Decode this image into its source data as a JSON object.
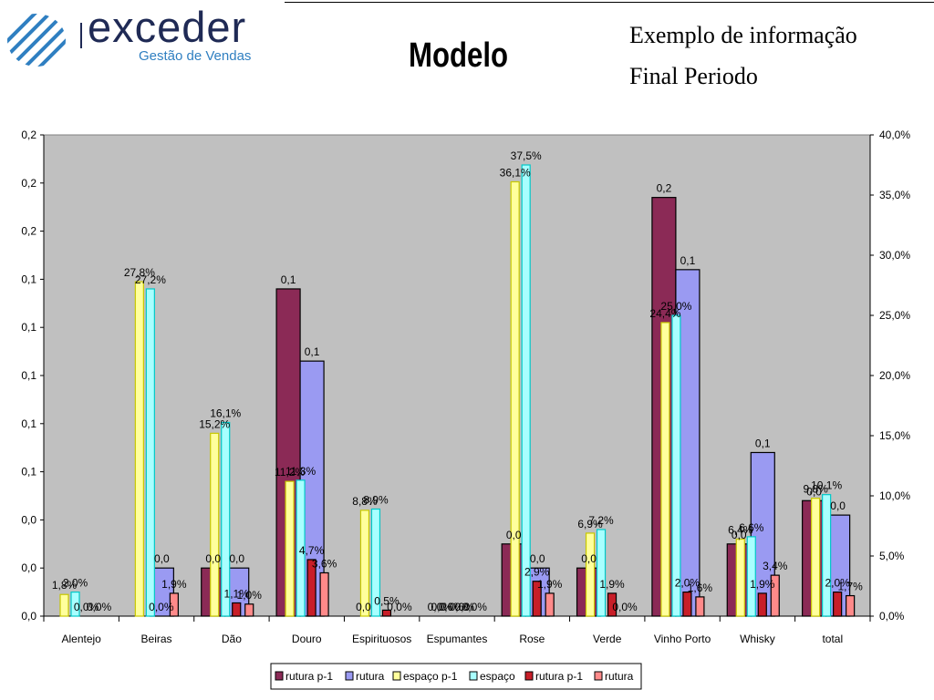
{
  "header": {
    "logo_text": "exceder",
    "logo_subtitle": "Gestão de Vendas",
    "title": "Modelo",
    "info_line1": "Exemplo de informação",
    "info_line2": "Final Periodo"
  },
  "colors": {
    "rutura_p1": "#8b2a56",
    "rutura": "#9a9af2",
    "espaco_p1": "#ffff9c",
    "espaco": "#a8ffff",
    "rutura_p1_pct": "#c81e28",
    "rutura_pct": "#ff8a8a",
    "plot_bg": "#c0c0c0"
  },
  "chart_data": {
    "type": "bar",
    "categories": [
      "Alentejo",
      "Beiras",
      "Dão",
      "Douro",
      "Espirituosos",
      "Espumantes",
      "Rose",
      "Verde",
      "Vinho Porto",
      "Whisky",
      "total"
    ],
    "ylim_left": [
      0,
      0.2
    ],
    "ylim_right": [
      0,
      40
    ],
    "left_ticks": [
      "0,0",
      "0,0",
      "0,0",
      "0,1",
      "0,1",
      "0,1",
      "0,1",
      "0,1",
      "0,2",
      "0,2",
      "0,2"
    ],
    "right_ticks": [
      "0,0%",
      "5,0%",
      "10,0%",
      "15,0%",
      "20,0%",
      "25,0%",
      "30,0%",
      "35,0%",
      "40,0%"
    ],
    "grid": false,
    "legend_position": "bottom-center",
    "series": [
      {
        "name": "rutura p-1",
        "axis": "left",
        "values": [
          0,
          0,
          0.02,
          0.136,
          0,
          0,
          0.03,
          0.02,
          0.174,
          0.03,
          0.048
        ],
        "labels": [
          "",
          "",
          "0,0",
          "0,1",
          "0,0",
          "0,0",
          "0,0",
          "0,0",
          "0,2",
          "0,0",
          "0,0"
        ]
      },
      {
        "name": "rutura",
        "axis": "left",
        "values": [
          0,
          0.02,
          0.02,
          0.106,
          0,
          0,
          0.02,
          0,
          0.144,
          0.068,
          0.042
        ],
        "labels": [
          "",
          "0,0",
          "0,0",
          "0,1",
          "",
          "0,0",
          "0,0",
          "",
          "0,1",
          "0,1",
          "0,0"
        ]
      },
      {
        "name": "espaço p-1",
        "axis": "right",
        "values": [
          1.8,
          27.8,
          15.2,
          11.2,
          8.8,
          0,
          36.1,
          6.9,
          24.4,
          6.4,
          9.8
        ],
        "labels": [
          "1,8%",
          "27,8%",
          "15,2%",
          "11,2%",
          "8,8%",
          "0,0%",
          "36,1%",
          "6,9%",
          "24,4%",
          "6,4%",
          "9,8%"
        ]
      },
      {
        "name": "espaço",
        "axis": "right",
        "values": [
          2.0,
          27.2,
          16.1,
          11.3,
          8.9,
          0,
          37.5,
          7.2,
          25.0,
          6.6,
          10.1
        ],
        "labels": [
          "2,0%",
          "27,2%",
          "16,1%",
          "11,3%",
          "8,9%",
          "0,0%",
          "37,5%",
          "7,2%",
          "25,0%",
          "6,6%",
          "10,1%"
        ]
      },
      {
        "name": "rutura p-1",
        "axis": "right",
        "values": [
          0,
          0,
          1.1,
          4.7,
          0.5,
          0,
          2.9,
          1.9,
          2.0,
          1.9,
          2.0
        ],
        "labels": [
          "0,0%",
          "0,0%",
          "1,1%",
          "4,7%",
          "0,5%",
          "0,0%",
          "2,9%",
          "1,9%",
          "2,0%",
          "1,9%",
          "2,0%"
        ]
      },
      {
        "name": "rutura",
        "axis": "right",
        "values": [
          0,
          1.9,
          1.0,
          3.6,
          0,
          0,
          1.9,
          0,
          1.6,
          3.4,
          1.7
        ],
        "labels": [
          "0,0%",
          "1,9%",
          "1,0%",
          "3,6%",
          "0,0%",
          "0,0%",
          "1,9%",
          "0,0%",
          "1,6%",
          "3,4%",
          "1,7%"
        ]
      }
    ]
  }
}
